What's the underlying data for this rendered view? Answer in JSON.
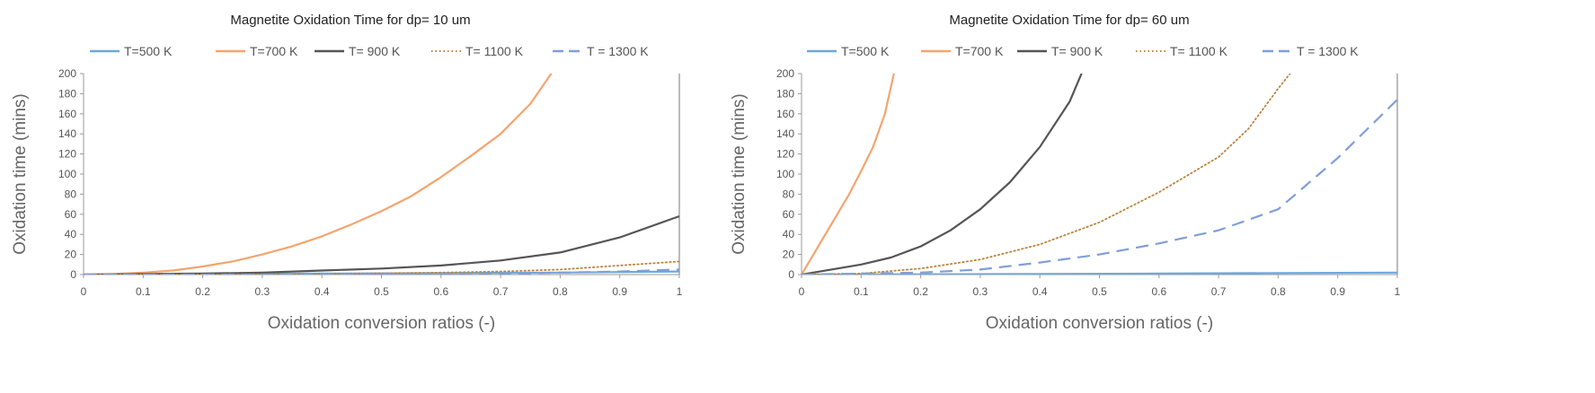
{
  "chart_data": [
    {
      "type": "line",
      "title": "Magnetite Oxidation Time for dp= 10 um",
      "xlabel": "Oxidation conversion ratios (-)",
      "ylabel": "Oxidation time (mins)",
      "xlim": [
        0,
        1
      ],
      "ylim": [
        0,
        200
      ],
      "x_ticks": [
        0,
        0.1,
        0.2,
        0.3,
        0.4,
        0.5,
        0.6,
        0.7,
        0.8,
        0.9,
        1
      ],
      "x_tick_labels": [
        "0",
        "0.1",
        "0.2",
        "0.3",
        "0.4",
        "0.5",
        "0.6",
        "0.7",
        "0.8",
        "0.9",
        "1"
      ],
      "y_ticks": [
        0,
        20,
        40,
        60,
        80,
        100,
        120,
        140,
        160,
        180,
        200
      ],
      "y_tick_labels": [
        "0",
        "20",
        "40",
        "60",
        "80",
        "100",
        "120",
        "140",
        "160",
        "180",
        "200"
      ],
      "legend_position": "top",
      "series": [
        {
          "name": "T=500 K",
          "color": "#6fa8dc",
          "style": "solid",
          "points": [
            [
              0,
              0
            ],
            [
              0.2,
              0.5
            ],
            [
              0.4,
              1
            ],
            [
              0.6,
              1.5
            ],
            [
              0.8,
              2
            ],
            [
              1,
              3
            ]
          ]
        },
        {
          "name": "T=700 K",
          "color": "#f4a46f",
          "style": "solid",
          "points": [
            [
              0,
              0
            ],
            [
              0.05,
              0.5
            ],
            [
              0.1,
              2
            ],
            [
              0.15,
              4
            ],
            [
              0.2,
              8
            ],
            [
              0.25,
              13
            ],
            [
              0.3,
              20
            ],
            [
              0.35,
              28
            ],
            [
              0.4,
              38
            ],
            [
              0.45,
              50
            ],
            [
              0.5,
              63
            ],
            [
              0.55,
              78
            ],
            [
              0.6,
              97
            ],
            [
              0.65,
              118
            ],
            [
              0.7,
              140
            ],
            [
              0.75,
              170
            ],
            [
              0.785,
              200
            ]
          ]
        },
        {
          "name": "T= 900 K",
          "color": "#555555",
          "style": "solid",
          "points": [
            [
              0,
              0
            ],
            [
              0.1,
              0.5
            ],
            [
              0.2,
              1
            ],
            [
              0.3,
              2
            ],
            [
              0.4,
              4
            ],
            [
              0.5,
              6
            ],
            [
              0.6,
              9
            ],
            [
              0.7,
              14
            ],
            [
              0.8,
              22
            ],
            [
              0.9,
              37
            ],
            [
              1,
              58
            ]
          ]
        },
        {
          "name": "T= 1100 K",
          "color": "#b8853f",
          "style": "dotted",
          "points": [
            [
              0,
              0
            ],
            [
              0.2,
              0.2
            ],
            [
              0.4,
              0.6
            ],
            [
              0.6,
              2
            ],
            [
              0.7,
              3
            ],
            [
              0.8,
              5
            ],
            [
              0.9,
              9
            ],
            [
              1,
              13
            ]
          ]
        },
        {
          "name": "T = 1300 K",
          "color": "#7f9fd8",
          "style": "dashed",
          "points": [
            [
              0,
              0
            ],
            [
              0.4,
              0.1
            ],
            [
              0.6,
              0.5
            ],
            [
              0.7,
              1
            ],
            [
              0.8,
              2
            ],
            [
              0.9,
              3
            ],
            [
              1,
              5
            ]
          ]
        }
      ]
    },
    {
      "type": "line",
      "title": "Magnetite Oxidation Time for dp= 60 um",
      "xlabel": "Oxidation conversion ratios (-)",
      "ylabel": "Oxidation time (mins)",
      "xlim": [
        0,
        1
      ],
      "ylim": [
        0,
        200
      ],
      "x_ticks": [
        0,
        0.1,
        0.2,
        0.3,
        0.4,
        0.5,
        0.6,
        0.7,
        0.8,
        0.9,
        1
      ],
      "x_tick_labels": [
        "0",
        "0.1",
        "0.2",
        "0.3",
        "0.4",
        "0.5",
        "0.6",
        "0.7",
        "0.8",
        "0.9",
        "1"
      ],
      "y_ticks": [
        0,
        20,
        40,
        60,
        80,
        100,
        120,
        140,
        160,
        180,
        200
      ],
      "y_tick_labels": [
        "0",
        "20",
        "40",
        "60",
        "80",
        "100",
        "120",
        "140",
        "160",
        "180",
        "200"
      ],
      "legend_position": "top",
      "series": [
        {
          "name": "T=500 K",
          "color": "#6fa8dc",
          "style": "solid",
          "points": [
            [
              0,
              0
            ],
            [
              0.2,
              0.3
            ],
            [
              0.4,
              0.6
            ],
            [
              0.6,
              1
            ],
            [
              0.8,
              1.5
            ],
            [
              1,
              2
            ]
          ]
        },
        {
          "name": "T=700 K",
          "color": "#f4a46f",
          "style": "solid",
          "points": [
            [
              0,
              0
            ],
            [
              0.02,
              20
            ],
            [
              0.04,
              40
            ],
            [
              0.06,
              60
            ],
            [
              0.08,
              80
            ],
            [
              0.1,
              103
            ],
            [
              0.12,
              127
            ],
            [
              0.14,
              160
            ],
            [
              0.155,
              200
            ]
          ]
        },
        {
          "name": "T= 900 K",
          "color": "#555555",
          "style": "solid",
          "points": [
            [
              0,
              0
            ],
            [
              0.05,
              5
            ],
            [
              0.1,
              10
            ],
            [
              0.15,
              17
            ],
            [
              0.2,
              28
            ],
            [
              0.25,
              44
            ],
            [
              0.3,
              65
            ],
            [
              0.35,
              92
            ],
            [
              0.4,
              127
            ],
            [
              0.45,
              172
            ],
            [
              0.47,
              200
            ]
          ]
        },
        {
          "name": "T= 1100 K",
          "color": "#b8853f",
          "style": "dotted",
          "points": [
            [
              0,
              0
            ],
            [
              0.1,
              1
            ],
            [
              0.2,
              6
            ],
            [
              0.3,
              15
            ],
            [
              0.4,
              30
            ],
            [
              0.5,
              52
            ],
            [
              0.6,
              82
            ],
            [
              0.7,
              117
            ],
            [
              0.75,
              145
            ],
            [
              0.8,
              185
            ],
            [
              0.82,
              200
            ]
          ]
        },
        {
          "name": "T = 1300 K",
          "color": "#7f9fd8",
          "style": "dashed",
          "points": [
            [
              0,
              0
            ],
            [
              0.1,
              1
            ],
            [
              0.2,
              2
            ],
            [
              0.3,
              5
            ],
            [
              0.4,
              12
            ],
            [
              0.5,
              20
            ],
            [
              0.6,
              31
            ],
            [
              0.7,
              44
            ],
            [
              0.8,
              65
            ],
            [
              0.9,
              116
            ],
            [
              1,
              174
            ]
          ]
        }
      ]
    }
  ]
}
